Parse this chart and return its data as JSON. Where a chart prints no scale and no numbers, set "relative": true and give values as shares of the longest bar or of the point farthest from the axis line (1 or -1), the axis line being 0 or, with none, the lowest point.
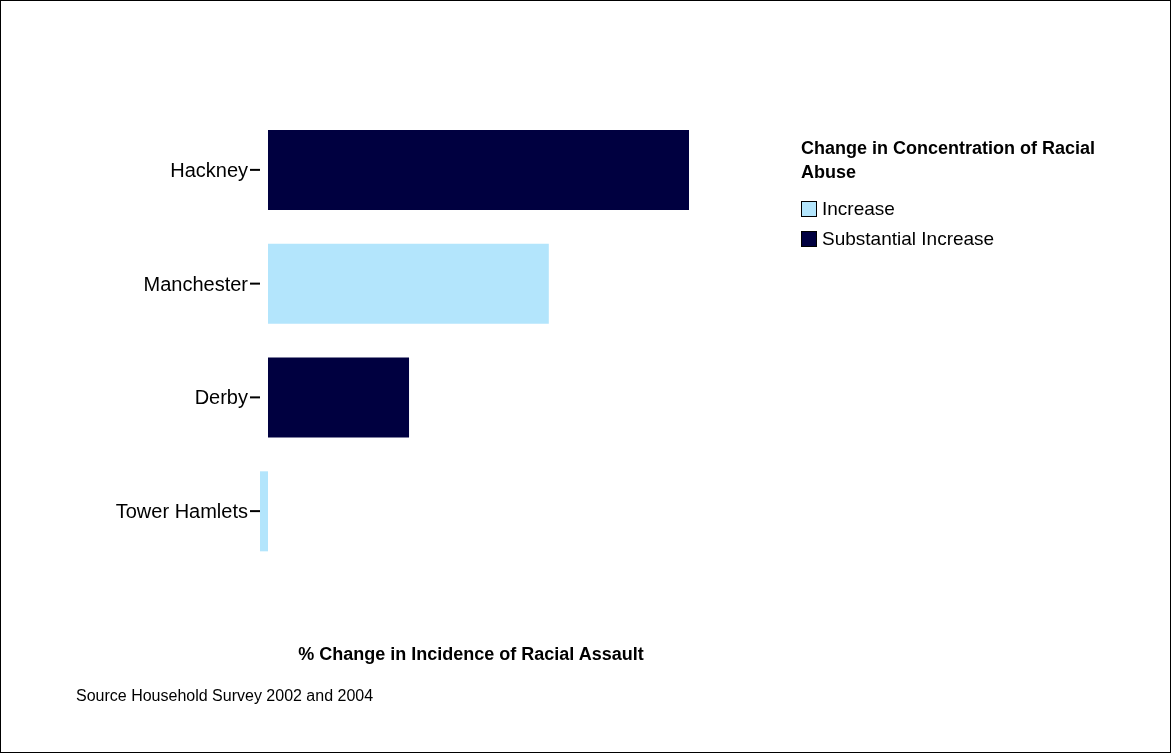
{
  "chart_data": {
    "type": "bar",
    "orientation": "horizontal",
    "relative": true,
    "categories": [
      "Hackney",
      "Manchester",
      "Derby",
      "Tower Hamlets"
    ],
    "series": [
      {
        "name": "Increase",
        "color": "#b3e5fc",
        "values": [
          null,
          0.667,
          null,
          -0.019
        ]
      },
      {
        "name": "Substantial Increase",
        "color": "#000040",
        "values": [
          1,
          null,
          0.335,
          null
        ]
      }
    ],
    "xlabel": "% Change in Incidence of Racial Assault",
    "legend_title": "Change in Concentration of Racial Abuse",
    "legend": "top right",
    "annotations": [
      "Source Household Survey 2002 and 2004"
    ]
  }
}
